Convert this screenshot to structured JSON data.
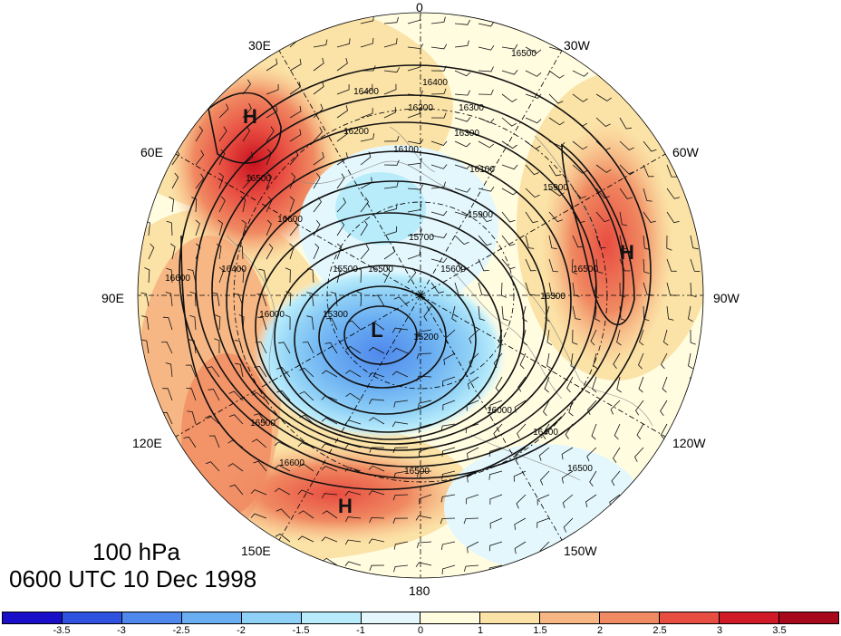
{
  "map": {
    "title_level": "100 hPa",
    "title_time": "0600 UTC 10 Dec 1998",
    "longitude_labels": [
      "0",
      "30W",
      "60W",
      "90W",
      "120W",
      "150W",
      "180",
      "150E",
      "120E",
      "90E",
      "60E",
      "30E"
    ],
    "centers": [
      {
        "name": "high-center-arctic-ural",
        "letter": "H"
      },
      {
        "name": "high-center-atlantic",
        "letter": "H"
      },
      {
        "name": "high-center-pacific",
        "letter": "H"
      },
      {
        "name": "low-center-polar-vortex",
        "letter": "L"
      }
    ],
    "contour_labels": [
      "16500",
      "16400",
      "16400",
      "16300",
      "16300",
      "16200",
      "16100",
      "16100",
      "15900",
      "15900",
      "15700",
      "15500",
      "15300",
      "15200",
      "15600",
      "16000",
      "16400",
      "16500",
      "16600",
      "16500",
      "16600",
      "16500",
      "16000",
      "16400",
      "16500",
      "16600",
      "16300",
      "16300",
      "16500",
      "16500"
    ],
    "colorbar": {
      "ticks": [
        "-3.5",
        "-3",
        "-2.5",
        "-2",
        "-1.5",
        "-1",
        "0",
        "1",
        "1.5",
        "2",
        "2.5",
        "3",
        "3.5"
      ],
      "colors": [
        "#1a0fc8",
        "#2f52e0",
        "#4f88ec",
        "#6aaef2",
        "#8fd0f6",
        "#b9ecfb",
        "#e4f7fd",
        "#fffce0",
        "#fbe2a6",
        "#f7b784",
        "#f08a62",
        "#e84d41",
        "#d11a27",
        "#a8081c"
      ],
      "tick_positions": [
        1,
        2,
        3,
        4,
        5,
        6,
        7,
        8,
        9,
        10,
        11,
        12,
        13
      ]
    }
  }
}
